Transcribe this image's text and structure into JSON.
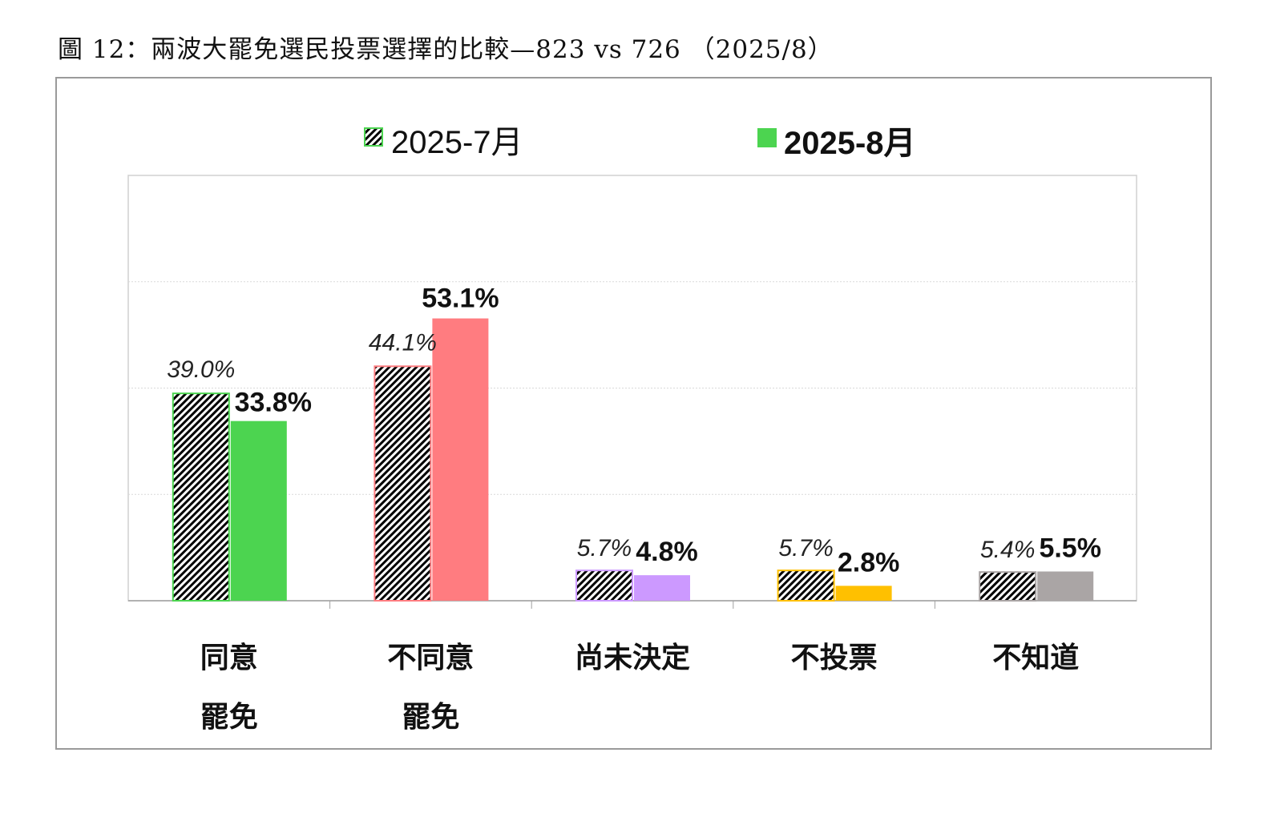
{
  "title": "圖 12：兩波大罷免選民投票選擇的比較—823 vs 726 （2025/8）",
  "chart_data": {
    "type": "bar",
    "title": "圖 12：兩波大罷免選民投票選擇的比較—823 vs 726 （2025/8）",
    "categories": [
      [
        "同意",
        "罷免"
      ],
      [
        "不同意",
        "罷免"
      ],
      [
        "尚未決定"
      ],
      [
        "不投票"
      ],
      [
        "不知道"
      ]
    ],
    "series": [
      {
        "name": "2025-7月",
        "style": "hatched",
        "values": [
          39.0,
          44.1,
          5.7,
          5.7,
          5.4
        ],
        "labels": [
          "39.0%",
          "44.1%",
          "5.7%",
          "5.7%",
          "5.4%"
        ]
      },
      {
        "name": "2025-8月",
        "style": "solid",
        "values": [
          33.8,
          53.1,
          4.8,
          2.8,
          5.5
        ],
        "labels": [
          "33.8%",
          "53.1%",
          "4.8%",
          "2.8%",
          "5.5%"
        ]
      }
    ],
    "category_colors": [
      "#4cd450",
      "#ff7c80",
      "#cc99ff",
      "#ffc000",
      "#aaa5a5"
    ],
    "legend_color": "#4cd450",
    "ylim": [
      0,
      80
    ],
    "grid": true,
    "legend_position": "top",
    "xlabel": "",
    "ylabel": ""
  }
}
